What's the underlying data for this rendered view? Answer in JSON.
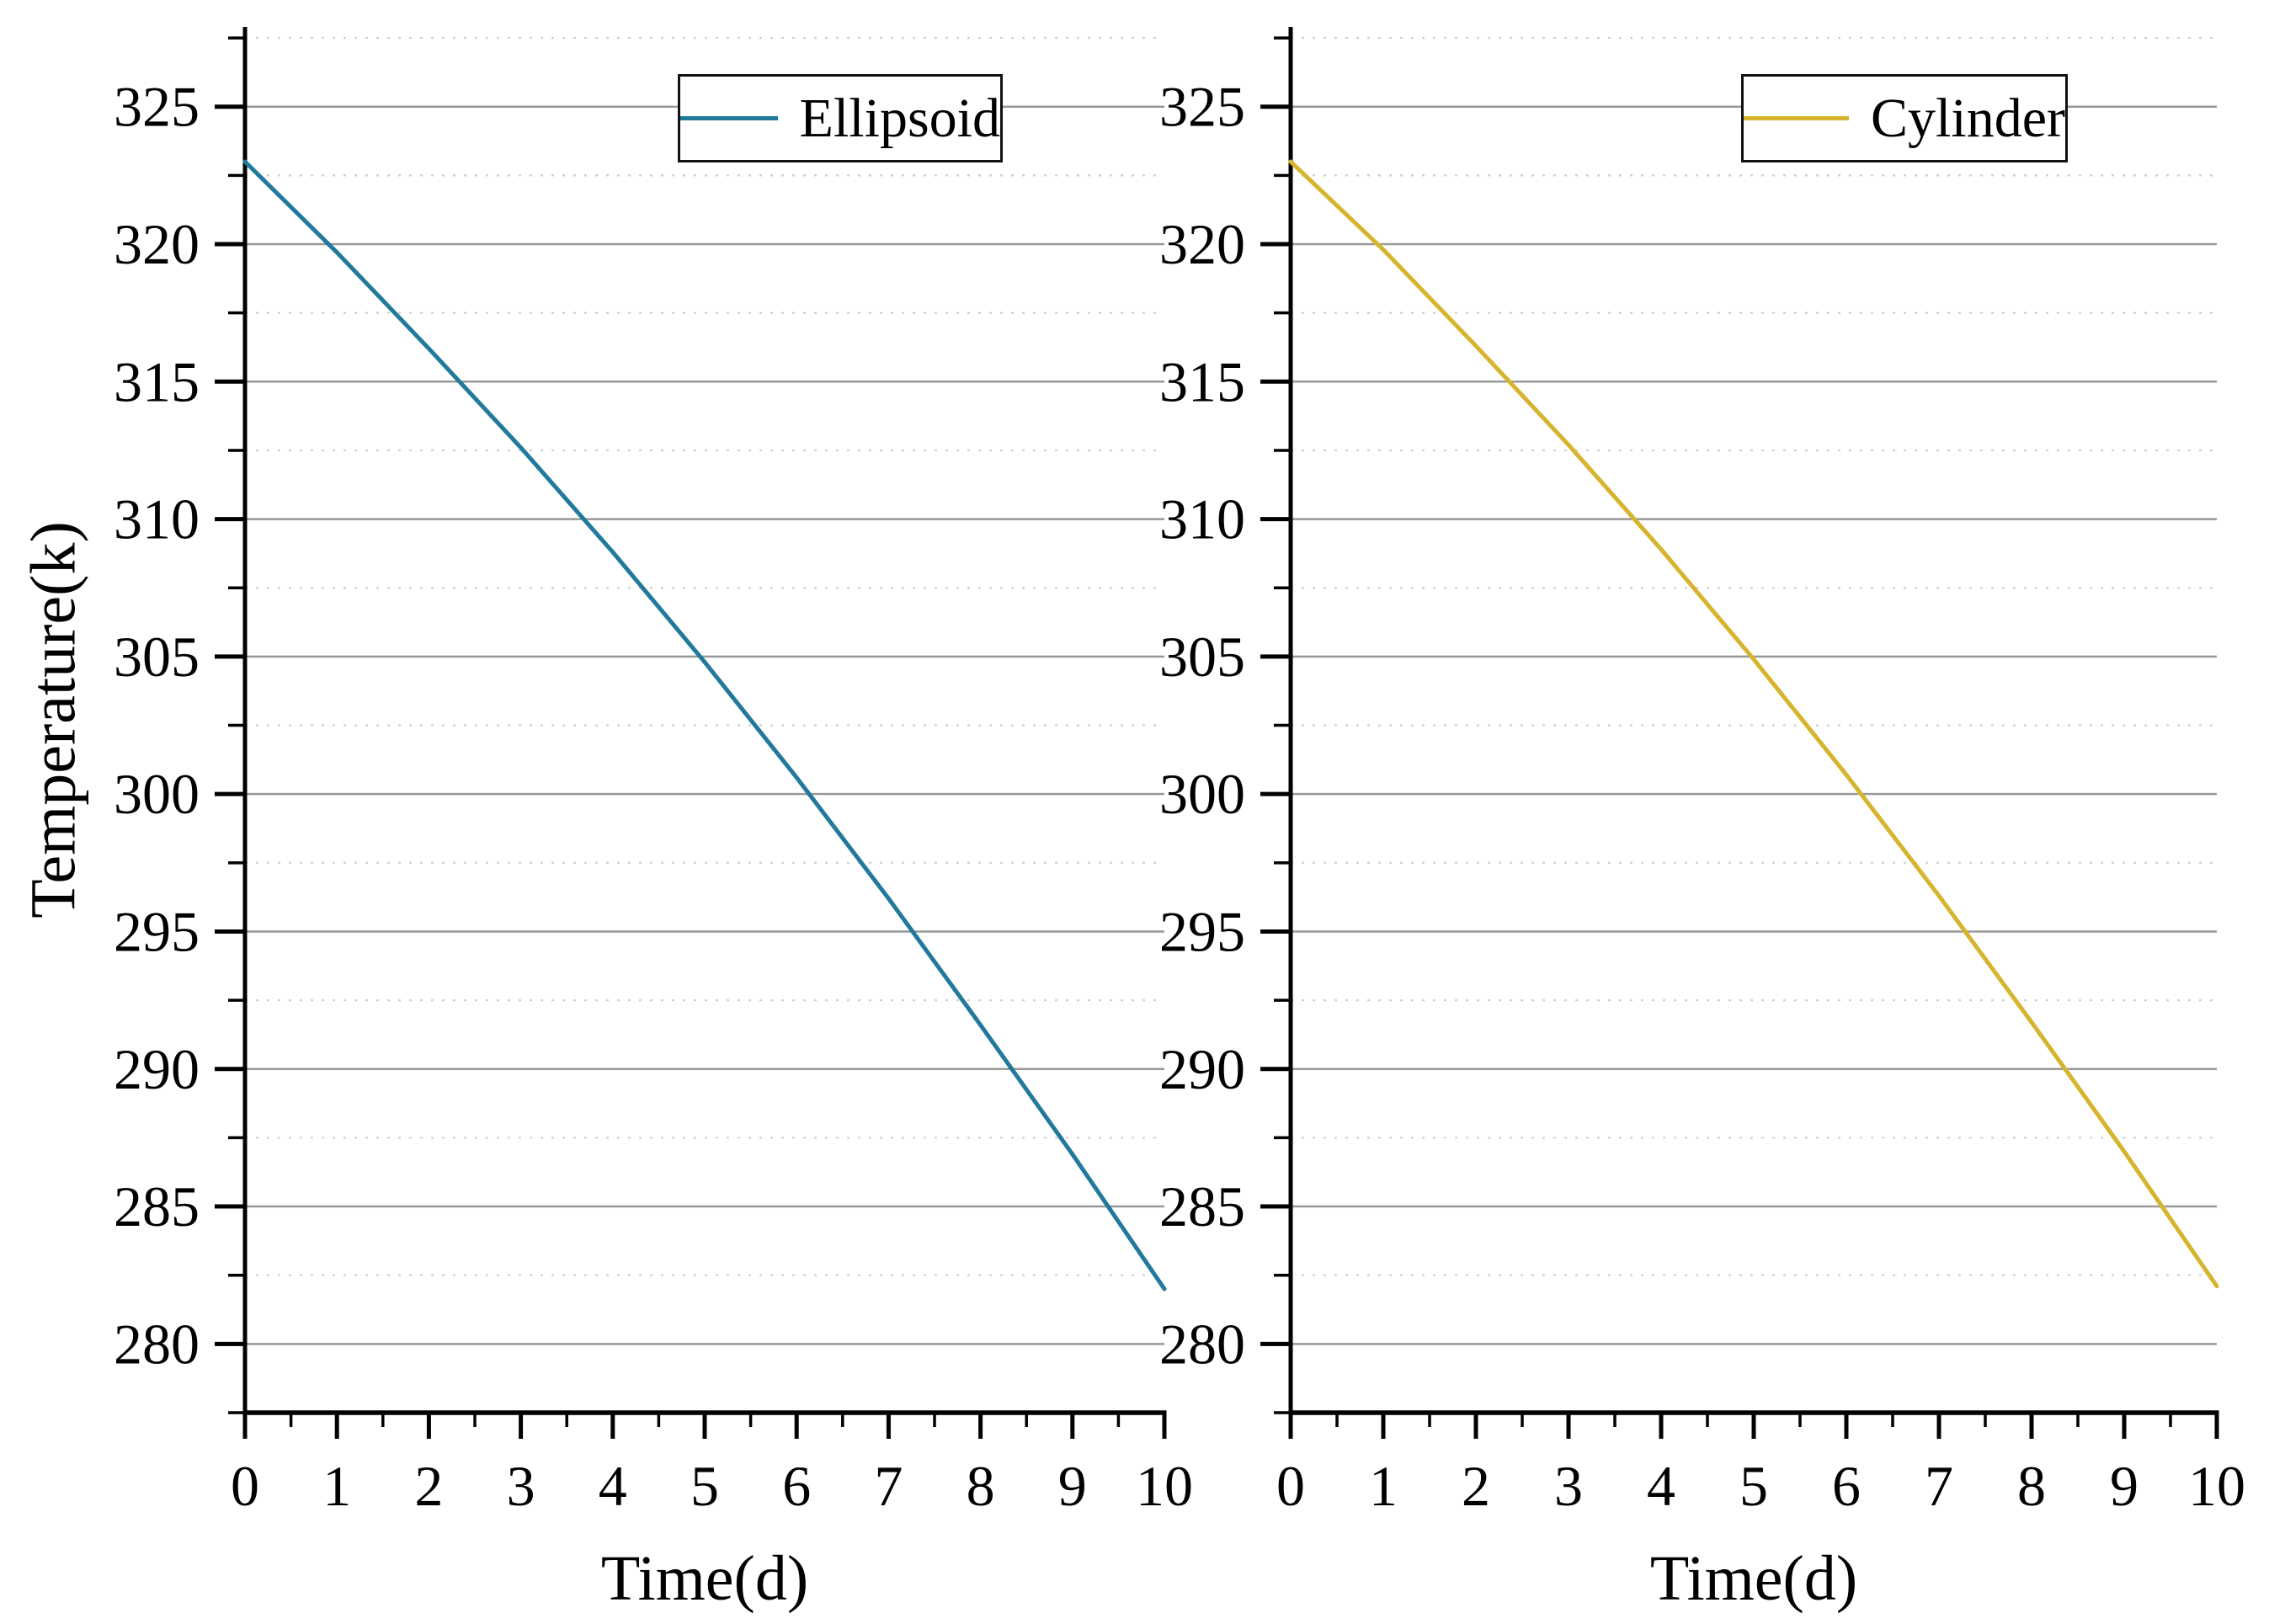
{
  "chart_data": [
    {
      "id": "ellipsoid",
      "type": "line",
      "title": "",
      "xlabel": "Time(d)",
      "ylabel": "Temperature(k)",
      "legend_label": "Ellipsoid",
      "legend_position": "top-right-inside",
      "line_color": "#21799c",
      "x": [
        0,
        1,
        2,
        3,
        4,
        5,
        6,
        7,
        8,
        9,
        10
      ],
      "values": [
        323.0,
        319.7,
        316.2,
        312.6,
        308.8,
        304.8,
        300.6,
        296.2,
        291.6,
        286.9,
        282.0
      ],
      "xlim": [
        0,
        10
      ],
      "ylim": [
        277.5,
        327.9
      ],
      "x_major_ticks": [
        0,
        1,
        2,
        3,
        4,
        5,
        6,
        7,
        8,
        9,
        10
      ],
      "x_tick_labels": [
        "0",
        "1",
        "2",
        "3",
        "4",
        "5",
        "6",
        "7",
        "8",
        "9",
        "10"
      ],
      "x_minor_step": 0.5,
      "y_major_ticks": [
        280,
        285,
        290,
        295,
        300,
        305,
        310,
        315,
        320,
        325
      ],
      "y_tick_labels": [
        "280",
        "285",
        "290",
        "295",
        "300",
        "305",
        "310",
        "315",
        "320",
        "325"
      ],
      "y_minor_step": 2.5,
      "grid": {
        "horizontal_major": true,
        "horizontal_minor": true,
        "vertical": false,
        "major_color": "#989898",
        "minor_color": "#cfcfcf",
        "minor_style": "dotted"
      },
      "axis_color": "#000000"
    },
    {
      "id": "cylinder",
      "type": "line",
      "title": "",
      "xlabel": "Time(d)",
      "ylabel": "",
      "legend_label": "Cylinder",
      "legend_position": "top-right-inside",
      "line_color": "#d6b42e",
      "x": [
        0,
        1,
        2,
        3,
        4,
        5,
        6,
        7,
        8,
        9,
        10
      ],
      "values": [
        323.0,
        319.8,
        316.3,
        312.7,
        308.9,
        304.9,
        300.7,
        296.3,
        291.7,
        287.0,
        282.1
      ],
      "xlim": [
        0,
        10
      ],
      "ylim": [
        277.5,
        327.9
      ],
      "x_major_ticks": [
        0,
        1,
        2,
        3,
        4,
        5,
        6,
        7,
        8,
        9,
        10
      ],
      "x_tick_labels": [
        "0",
        "1",
        "2",
        "3",
        "4",
        "5",
        "6",
        "7",
        "8",
        "9",
        "10"
      ],
      "x_minor_step": 0.5,
      "y_major_ticks": [
        280,
        285,
        290,
        295,
        300,
        305,
        310,
        315,
        320,
        325
      ],
      "y_tick_labels": [
        "280",
        "285",
        "290",
        "295",
        "300",
        "305",
        "310",
        "315",
        "320",
        "325"
      ],
      "y_minor_step": 2.5,
      "grid": {
        "horizontal_major": true,
        "horizontal_minor": true,
        "vertical": false,
        "major_color": "#989898",
        "minor_color": "#cfcfcf",
        "minor_style": "dotted"
      },
      "axis_color": "#000000"
    }
  ]
}
